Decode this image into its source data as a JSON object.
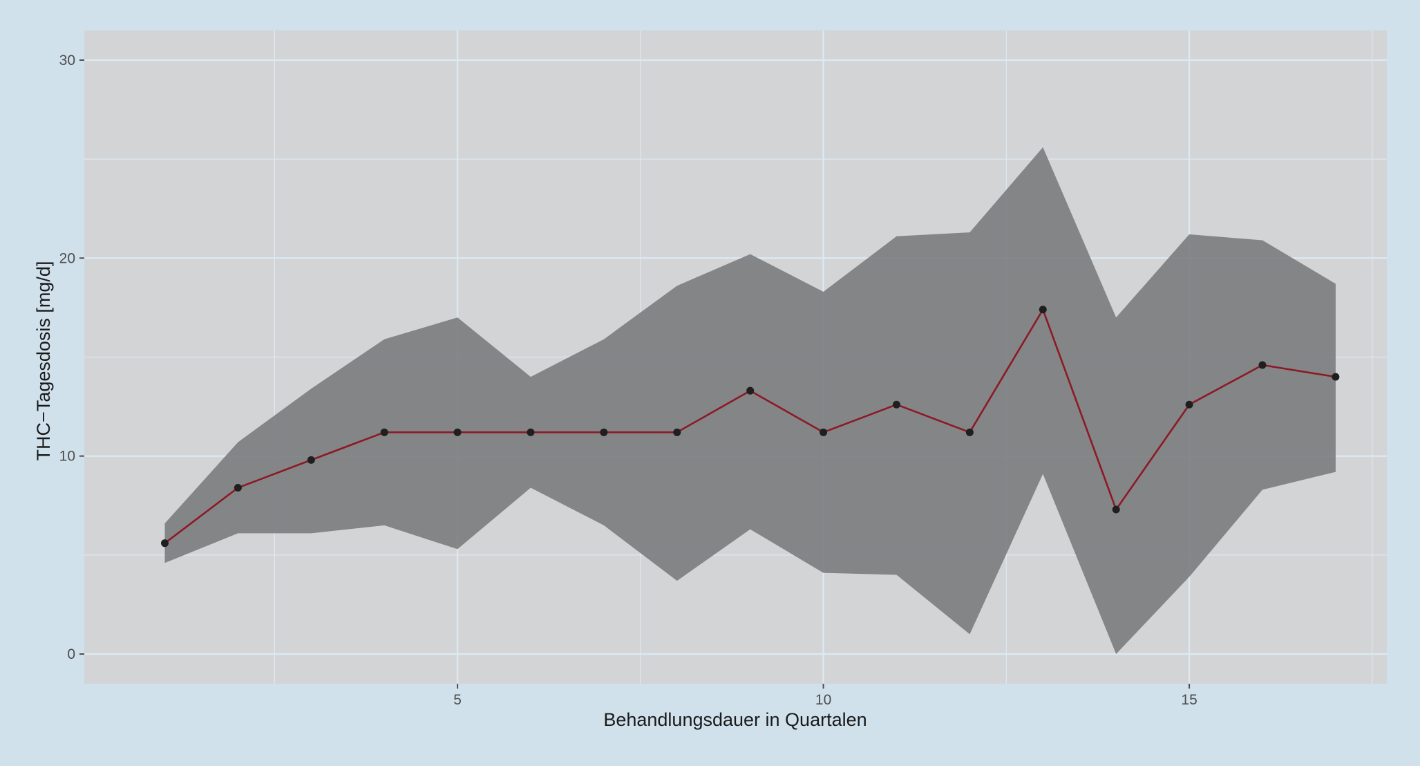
{
  "chart_data": {
    "type": "line",
    "title": "",
    "xlabel": "Behandlungsdauer in Quartalen",
    "ylabel": "THC−Tagesdosis [mg/d]",
    "xlim": [
      -0.1,
      17.7
    ],
    "ylim": [
      -1.5,
      31.5
    ],
    "x_ticks": [
      5,
      10,
      15
    ],
    "x_tick_labels": [
      "5",
      "10",
      "15"
    ],
    "x_minor_gridlines": [
      2.5,
      7.5,
      12.5,
      17.5
    ],
    "y_ticks": [
      0,
      10,
      20,
      30
    ],
    "y_tick_labels": [
      "0",
      "10",
      "20",
      "30"
    ],
    "y_minor_gridlines": [
      5,
      15,
      25
    ],
    "grid": true,
    "colors": {
      "figure_background": "#d0e1ec",
      "panel_background": "#d3d4d6",
      "gridline": "#dce9f2",
      "ribbon": "#767779",
      "line": "#8b1a25",
      "point": "#1f1f1f",
      "tick_mark": "#4d4d4d"
    },
    "series": [
      {
        "x": [
          1,
          2,
          3,
          4,
          5,
          6,
          7,
          8,
          9,
          10,
          11,
          12,
          13,
          14,
          15,
          16,
          17
        ],
        "y": [
          5.6,
          8.4,
          9.8,
          11.2,
          11.2,
          11.2,
          11.2,
          11.2,
          13.3,
          11.2,
          12.6,
          11.2,
          17.4,
          7.3,
          12.6,
          14.6,
          14.0
        ],
        "lower": [
          4.6,
          6.1,
          6.1,
          6.5,
          5.3,
          8.4,
          6.5,
          3.7,
          6.3,
          4.1,
          4.0,
          1.0,
          9.1,
          0.0,
          3.9,
          8.3,
          9.2
        ],
        "upper": [
          6.6,
          10.7,
          13.4,
          15.9,
          17.0,
          14.0,
          15.9,
          18.6,
          20.2,
          18.3,
          21.1,
          21.3,
          25.6,
          17.0,
          21.2,
          20.9,
          18.7
        ]
      }
    ]
  }
}
